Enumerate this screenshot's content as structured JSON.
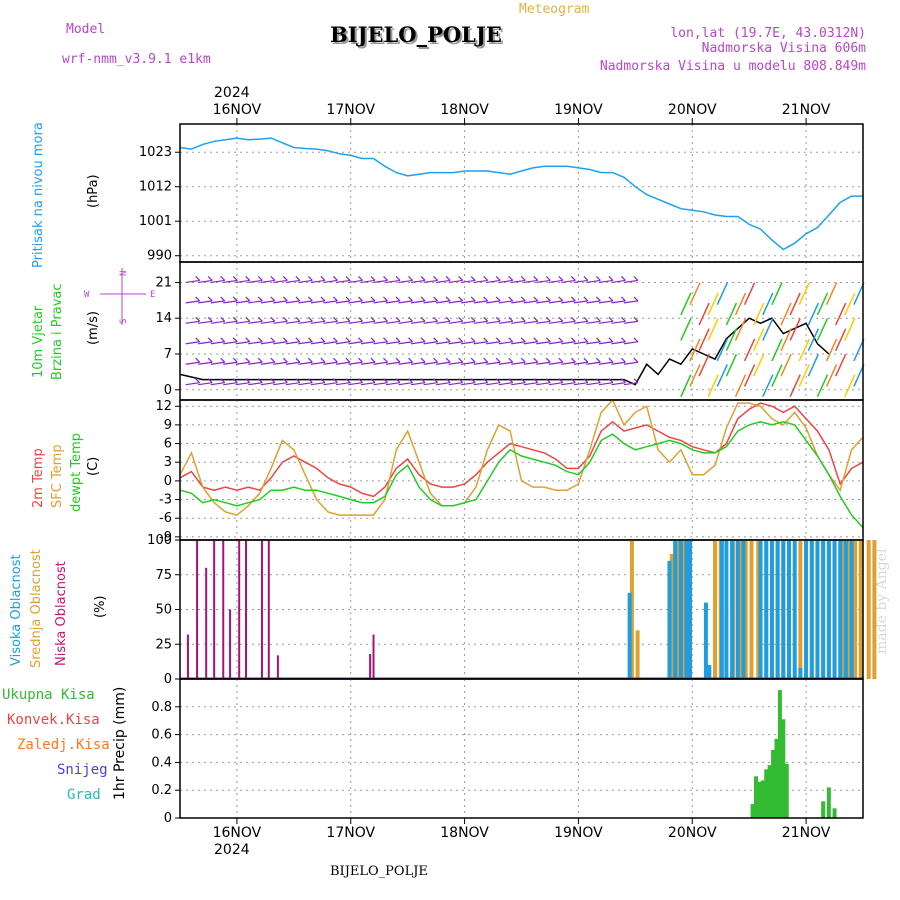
{
  "header": {
    "model_label": "Model",
    "model_name": "wrf-nmm_v3.9.1 e1km",
    "meteogram_label": "Meteogram",
    "station": "BIJELO_POLJE",
    "lonlat": "lon,lat (19.7E, 43.0312N)",
    "elevation": "Nadmorska Visina 606m",
    "model_elevation": "Nadmorska Visina u modelu 808.849m",
    "footer_station": "BIJELO_POLJE",
    "watermark": "made by Angel",
    "top_year": "2024",
    "bottom_year": "2024"
  },
  "colors": {
    "pressure": "#1da1f2",
    "temp_2m": "#ee4444",
    "temp_sfc": "#e0a030",
    "dewpoint": "#22cc22",
    "cloud_high": "#1e9de0",
    "cloud_mid": "#e0a030",
    "cloud_low": "#aa1177",
    "precip_total": "#33bb33",
    "precip_conv": "#ee4444",
    "precip_frz": "#ff7722",
    "precip_snow": "#4444dd",
    "precip_hail": "#22bbbb",
    "wind_barb": "#8822cc",
    "label_purple": "#bb44cc",
    "label_orange": "#e8b040"
  },
  "chart_data": [
    {
      "type": "line",
      "panel": "pressure",
      "ylabel_left": "Pritisak na nivou mora",
      "ylabel": "(hPa)",
      "x_unit": "days from 16NOV 00 UTC",
      "xlim": [
        -0.5,
        5.5
      ],
      "ylim": [
        988,
        1032
      ],
      "yticks": [
        990,
        1001,
        1012,
        1023
      ],
      "x_tick_labels": [
        "16NOV",
        "17NOV",
        "18NOV",
        "19NOV",
        "20NOV",
        "21NOV"
      ],
      "grid": true,
      "series": [
        {
          "x": [
            -0.5,
            -0.4,
            -0.3,
            -0.2,
            -0.1,
            0.0,
            0.1,
            0.2,
            0.3,
            0.4,
            0.5,
            0.6,
            0.7,
            0.8,
            0.9,
            1.0,
            1.1,
            1.2,
            1.3,
            1.4,
            1.5,
            1.6,
            1.7,
            1.8,
            1.9,
            2.0,
            2.1,
            2.2,
            2.3,
            2.4,
            2.5,
            2.6,
            2.7,
            2.8,
            2.9,
            3.0,
            3.1,
            3.2,
            3.3,
            3.4,
            3.5,
            3.6,
            3.7,
            3.8,
            3.9,
            4.0,
            4.1,
            4.2,
            4.3,
            4.4,
            4.5,
            4.6,
            4.7,
            4.8,
            4.9,
            5.0,
            5.1,
            5.2,
            5.3,
            5.4,
            5.5
          ],
          "y": [
            1024.5,
            1024.0,
            1025.5,
            1026.5,
            1027.0,
            1027.5,
            1027.0,
            1027.2,
            1027.5,
            1026.0,
            1024.5,
            1024.2,
            1024.0,
            1023.5,
            1022.5,
            1022.0,
            1021.0,
            1021.0,
            1018.5,
            1016.5,
            1015.5,
            1016.0,
            1016.5,
            1016.5,
            1016.5,
            1017.0,
            1017.0,
            1017.0,
            1016.5,
            1016.0,
            1017.0,
            1018.0,
            1018.5,
            1018.5,
            1018.5,
            1018.0,
            1017.5,
            1016.5,
            1016.5,
            1015.0,
            1012.0,
            1009.5,
            1008.0,
            1006.5,
            1005.0,
            1004.5,
            1004.0,
            1003.0,
            1002.5,
            1002.5,
            1000.0,
            998.5,
            995.0,
            992.0,
            994.0,
            997.0,
            999.0,
            1003.0,
            1007.0,
            1009.0,
            1009.0
          ]
        }
      ]
    },
    {
      "type": "line",
      "panel": "wind",
      "ylabel_left": [
        "10m Vjetar",
        "Brzina i Pravac"
      ],
      "ylabel": "(m/s)",
      "compass": {
        "n": "N",
        "s": "S",
        "w": "W",
        "e": "E"
      },
      "xlim": [
        -0.5,
        5.5
      ],
      "ylim": [
        -2,
        25
      ],
      "yticks": [
        0,
        7,
        14,
        21
      ],
      "grid": true,
      "series": [
        {
          "name": "speed",
          "x": [
            -0.5,
            -0.3,
            0.0,
            0.4,
            0.8,
            1.2,
            1.6,
            2.0,
            2.4,
            2.8,
            3.2,
            3.4,
            3.5,
            3.6,
            3.7,
            3.8,
            3.9,
            4.0,
            4.1,
            4.2,
            4.3,
            4.4,
            4.5,
            4.6,
            4.7,
            4.8,
            4.9,
            5.0,
            5.1,
            5.2
          ],
          "y": [
            3,
            2,
            2,
            2,
            2,
            2,
            2,
            2,
            2,
            2,
            2,
            2,
            1,
            5,
            3,
            6,
            5,
            8,
            7,
            6,
            10,
            12,
            14,
            13,
            14,
            11,
            12,
            13,
            9,
            7
          ]
        }
      ]
    },
    {
      "type": "line",
      "panel": "temperature",
      "ylabel_left": [
        "2m Temp",
        "SFC Temp",
        "dewpt Temp"
      ],
      "ylabel": "(C)",
      "xlim": [
        -0.5,
        5.5
      ],
      "ylim": [
        -9.5,
        13
      ],
      "yticks": [
        -9,
        -6,
        -3,
        0,
        3,
        6,
        9,
        12
      ],
      "grid": true,
      "series": [
        {
          "name": "2m Temp",
          "x": [
            -0.5,
            -0.4,
            -0.3,
            -0.2,
            -0.1,
            0.0,
            0.1,
            0.2,
            0.3,
            0.4,
            0.5,
            0.6,
            0.7,
            0.8,
            0.9,
            1.0,
            1.1,
            1.2,
            1.3,
            1.4,
            1.5,
            1.6,
            1.7,
            1.8,
            1.9,
            2.0,
            2.1,
            2.2,
            2.3,
            2.4,
            2.5,
            2.6,
            2.7,
            2.8,
            2.9,
            3.0,
            3.1,
            3.2,
            3.3,
            3.4,
            3.5,
            3.6,
            3.7,
            3.8,
            3.9,
            4.0,
            4.1,
            4.2,
            4.3,
            4.4,
            4.5,
            4.6,
            4.7,
            4.8,
            4.9,
            5.0,
            5.1,
            5.2,
            5.3,
            5.4,
            5.5
          ],
          "y": [
            0.5,
            1.5,
            -1.0,
            -1.5,
            -1.0,
            -1.5,
            -1.0,
            -1.5,
            0.5,
            3.0,
            4.0,
            3.0,
            2.0,
            0.5,
            -0.5,
            -1.0,
            -2.0,
            -2.5,
            -1.0,
            2.0,
            3.5,
            1.0,
            -0.5,
            -1.0,
            -1.0,
            -0.5,
            1.0,
            3.0,
            4.5,
            6.0,
            5.5,
            5.0,
            4.5,
            3.5,
            2.0,
            2.0,
            4.0,
            8.0,
            9.5,
            8.0,
            8.5,
            9.0,
            8.0,
            7.0,
            6.5,
            5.5,
            5.0,
            4.5,
            6.0,
            10.0,
            11.5,
            12.5,
            12.0,
            11.0,
            12.0,
            10.0,
            8.0,
            5.0,
            -0.5,
            2.0,
            3.0
          ]
        },
        {
          "name": "SFC Temp",
          "x": [
            -0.5,
            -0.4,
            -0.3,
            -0.2,
            -0.1,
            0.0,
            0.1,
            0.2,
            0.3,
            0.4,
            0.5,
            0.6,
            0.7,
            0.8,
            0.9,
            1.0,
            1.1,
            1.2,
            1.3,
            1.4,
            1.5,
            1.6,
            1.7,
            1.8,
            1.9,
            2.0,
            2.1,
            2.2,
            2.3,
            2.4,
            2.5,
            2.6,
            2.7,
            2.8,
            2.9,
            3.0,
            3.1,
            3.2,
            3.3,
            3.4,
            3.5,
            3.6,
            3.7,
            3.8,
            3.9,
            4.0,
            4.1,
            4.2,
            4.3,
            4.4,
            4.5,
            4.6,
            4.7,
            4.8,
            4.9,
            5.0,
            5.1,
            5.2,
            5.3,
            5.4,
            5.5
          ],
          "y": [
            1.0,
            4.5,
            -1.0,
            -3.5,
            -5.0,
            -5.5,
            -4.0,
            -2.0,
            2.0,
            6.5,
            5.0,
            1.0,
            -3.0,
            -5.0,
            -5.5,
            -5.5,
            -5.5,
            -5.5,
            -3.0,
            5.0,
            8.0,
            3.0,
            -2.0,
            -4.0,
            -4.0,
            -3.5,
            -1.0,
            5.0,
            9.0,
            8.0,
            0.0,
            -1.0,
            -1.0,
            -1.5,
            -1.5,
            -0.5,
            5.0,
            11.0,
            13.0,
            9.0,
            11.0,
            12.0,
            5.0,
            3.0,
            5.0,
            1.0,
            1.0,
            2.5,
            8.5,
            12.5,
            12.5,
            12.0,
            10.0,
            9.0,
            11.0,
            8.5,
            4.0,
            1.0,
            -1.5,
            5.0,
            7.0
          ]
        },
        {
          "name": "dewpt Temp",
          "x": [
            -0.5,
            -0.4,
            -0.3,
            -0.2,
            -0.1,
            0.0,
            0.1,
            0.2,
            0.3,
            0.4,
            0.5,
            0.6,
            0.7,
            0.8,
            0.9,
            1.0,
            1.1,
            1.2,
            1.3,
            1.4,
            1.5,
            1.6,
            1.7,
            1.8,
            1.9,
            2.0,
            2.1,
            2.2,
            2.3,
            2.4,
            2.5,
            2.6,
            2.7,
            2.8,
            2.9,
            3.0,
            3.1,
            3.2,
            3.3,
            3.4,
            3.5,
            3.6,
            3.7,
            3.8,
            3.9,
            4.0,
            4.1,
            4.2,
            4.3,
            4.4,
            4.5,
            4.6,
            4.7,
            4.8,
            4.9,
            5.0,
            5.1,
            5.2,
            5.3,
            5.4,
            5.5
          ],
          "y": [
            -1.5,
            -2.0,
            -3.5,
            -3.0,
            -3.5,
            -4.0,
            -3.5,
            -3.0,
            -1.5,
            -1.5,
            -1.0,
            -1.5,
            -1.5,
            -2.0,
            -2.5,
            -3.0,
            -3.5,
            -3.5,
            -2.5,
            1.0,
            2.5,
            -1.0,
            -3.0,
            -4.0,
            -4.0,
            -3.5,
            -3.0,
            0.0,
            3.0,
            5.0,
            4.0,
            3.5,
            3.0,
            2.5,
            1.5,
            1.0,
            3.0,
            6.5,
            7.5,
            6.0,
            5.0,
            5.5,
            6.0,
            6.5,
            6.0,
            5.0,
            4.5,
            4.5,
            5.5,
            8.0,
            9.0,
            9.5,
            9.0,
            9.5,
            9.0,
            6.5,
            4.0,
            1.0,
            -2.5,
            -5.5,
            -7.5
          ]
        }
      ]
    },
    {
      "type": "bar",
      "panel": "cloud",
      "ylabel_left": [
        "Visoka Oblacnost",
        "Srednja Oblacnost",
        "Niska Oblacnost"
      ],
      "ylabel": "(%)",
      "xlim": [
        -0.5,
        5.5
      ],
      "ylim": [
        0,
        100
      ],
      "yticks": [
        0,
        25,
        50,
        75,
        100
      ],
      "grid": true,
      "series": [
        {
          "name": "Niska Oblacnost",
          "x": [
            -0.43,
            -0.35,
            -0.27,
            -0.2,
            -0.12,
            -0.06,
            0.02,
            0.08,
            0.22,
            0.28,
            0.36,
            1.17,
            1.2
          ],
          "values": [
            32,
            100,
            80,
            100,
            100,
            50,
            100,
            100,
            100,
            100,
            17,
            18,
            32
          ]
        },
        {
          "name": "Srednja Oblacnost",
          "x": [
            3.47,
            3.52,
            3.82,
            3.87,
            3.92,
            4.2,
            4.25,
            4.3,
            4.36,
            4.42,
            4.47,
            4.52,
            4.58,
            4.65,
            4.7,
            4.75,
            4.8,
            4.85,
            4.95,
            5.0,
            5.05,
            5.1,
            5.15,
            5.2,
            5.25,
            5.33,
            5.38,
            5.43,
            5.48,
            5.55,
            5.6
          ],
          "values": [
            100,
            35,
            90,
            100,
            100,
            100,
            100,
            50,
            100,
            100,
            100,
            100,
            100,
            100,
            100,
            100,
            100,
            100,
            100,
            100,
            100,
            100,
            100,
            100,
            100,
            100,
            100,
            100,
            100,
            100,
            100
          ]
        },
        {
          "name": "Visoka Oblacnost",
          "x": [
            3.45,
            3.8,
            3.85,
            3.9,
            3.95,
            3.98,
            4.12,
            4.15,
            4.26,
            4.3,
            4.35,
            4.4,
            4.45,
            4.6,
            4.65,
            4.7,
            4.75,
            4.8,
            4.85,
            4.9,
            4.95,
            5.0,
            5.05,
            5.1,
            5.15,
            5.2,
            5.25,
            5.3,
            5.35,
            5.4
          ],
          "values": [
            62,
            85,
            100,
            100,
            100,
            100,
            55,
            10,
            100,
            100,
            100,
            100,
            100,
            100,
            100,
            100,
            100,
            100,
            100,
            100,
            8,
            100,
            100,
            100,
            100,
            100,
            100,
            100,
            100,
            100
          ]
        }
      ]
    },
    {
      "type": "bar",
      "panel": "precip",
      "ylabel_left": [
        "Ukupna Kisa",
        "Konvek.Kisa",
        "Zaledj.Kisa",
        "Snijeg",
        "Grad"
      ],
      "ylabel": "1hr Precip (mm)",
      "xlim": [
        -0.5,
        5.5
      ],
      "ylim": [
        0,
        1.0
      ],
      "yticks": [
        0,
        0.2,
        0.4,
        0.6,
        0.8
      ],
      "grid": true,
      "series": [
        {
          "name": "Ukupna Kisa",
          "x": [
            4.53,
            4.56,
            4.59,
            4.62,
            4.65,
            4.68,
            4.71,
            4.74,
            4.77,
            4.8,
            4.83,
            4.86,
            4.89,
            4.92,
            5.15,
            5.2,
            5.25
          ],
          "values": [
            0.1,
            0.3,
            0.26,
            0.27,
            0.35,
            0.38,
            0.49,
            0.57,
            0.92,
            0.71,
            0.39,
            0.0,
            0.0,
            0.0,
            0.12,
            0.22,
            0.07
          ]
        }
      ]
    }
  ]
}
